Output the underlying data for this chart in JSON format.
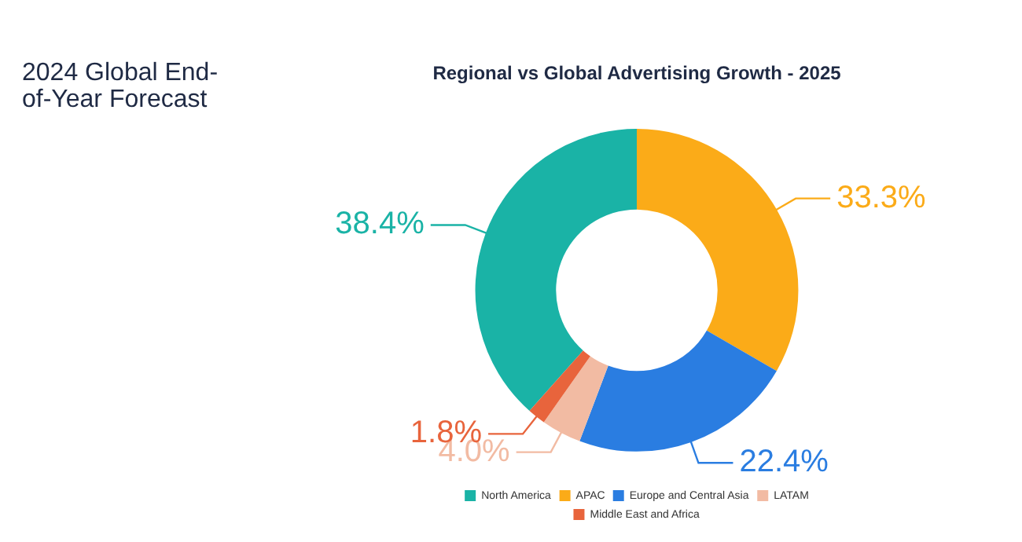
{
  "chart_data": {
    "type": "donut",
    "title": "Regional vs Global Advertising Growth - 2025",
    "annotations": [
      "2024 Global End-of-Year Forecast"
    ],
    "categories": [
      "North America",
      "APAC",
      "Europe and Central Asia",
      "LATAM",
      "Middle East and Africa"
    ],
    "values": [
      38.4,
      33.3,
      22.4,
      4.0,
      1.8
    ],
    "value_labels": [
      "38.4%",
      "33.3%",
      "22.4%",
      "4.0%",
      "1.8%"
    ],
    "colors": [
      "#1ab3a6",
      "#fbab18",
      "#2a7de1",
      "#f2bba3",
      "#e8643c"
    ],
    "legend": "bottom"
  }
}
